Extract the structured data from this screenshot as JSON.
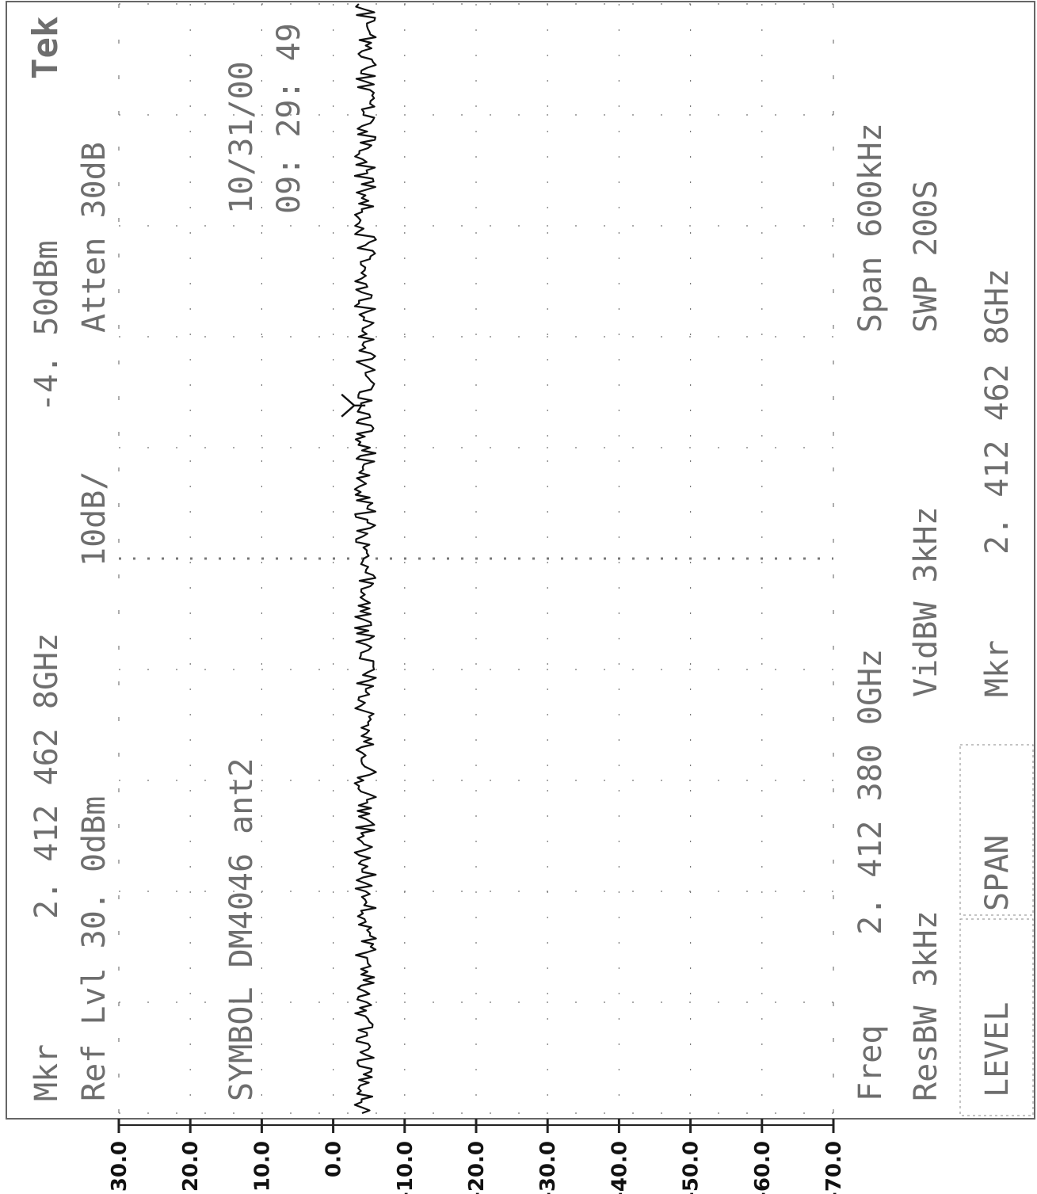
{
  "logo": "Tek",
  "readout": {
    "mkr_label": "Mkr",
    "mkr_freq": "2. 412 462 8GHz",
    "mkr_level": "-4. 50dBm",
    "ref_lvl": "Ref Lvl 30. 0dBm",
    "scale": "10dB/",
    "atten": "Atten 30dB",
    "title": "SYMBOL DM4046 ant2",
    "date": "10/31/00",
    "time": "09: 29: 49",
    "freq_label": "Freq",
    "freq_value": "2. 412 380 0GHz",
    "span": "Span 600kHz",
    "resbw": "ResBW 3kHz",
    "vidbw": "VidBW 3kHz",
    "swp": "SWP 200S",
    "mkr2_label": "Mkr",
    "mkr2_value": "2. 412 462 8GHz"
  },
  "softkeys": [
    "LEVEL",
    "SPAN"
  ],
  "chart_data": {
    "type": "line",
    "xlabel": "",
    "ylabel": "",
    "ylim": [
      -70,
      30
    ],
    "x_range_ghz": [
      2.41208,
      2.41268
    ],
    "yticks": [
      "30.0",
      "20.0",
      "10.0",
      "0.0",
      "-10.0",
      "-20.0",
      "-30.0",
      "-40.0",
      "-50.0",
      "-60.0",
      "-70.0"
    ],
    "orientation": "rotated-90-clockwise",
    "grid": true,
    "series": [
      {
        "trace_level_dbm": -4.5,
        "noise_dbm": 1.5,
        "points": 400
      }
    ],
    "marker": {
      "x_ghz": 2.4124628,
      "y_dbm": -4.5
    }
  },
  "colors": {
    "trace": "#111111",
    "grid": "#777777",
    "text": "#6e6e6e"
  }
}
